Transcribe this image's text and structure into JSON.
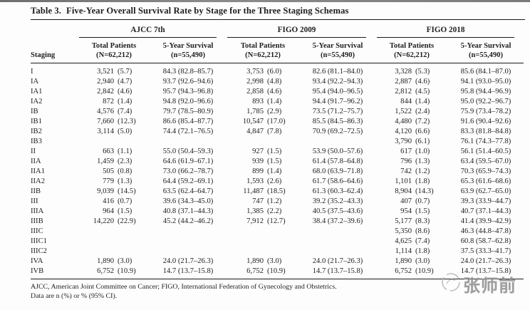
{
  "page": {
    "title_label": "Table 3.",
    "title_text": "Five-Year Overall Survival Rate by Stage for the Three Staging Schemas"
  },
  "table": {
    "staging_header": "Staging",
    "groups": [
      {
        "label": "AJCC 7th"
      },
      {
        "label": "FIGO 2009"
      },
      {
        "label": "FIGO 2018"
      }
    ],
    "subheaders": {
      "total_patients": "Total Patients",
      "total_patients_n": "(N=62,212)",
      "survival": "5-Year Survival",
      "survival_n": "(n=55,490)"
    },
    "rows": [
      {
        "stage": "I",
        "cells": [
          "3,521 (5.7)",
          "84.3 (82.8–85.7)",
          "3,753 (6.0)",
          "82.6 (81.1–84.0)",
          "3,328 (5.3)",
          "85.6 (84.1–87.0)"
        ]
      },
      {
        "stage": "IA",
        "cells": [
          "2,940 (4.7)",
          "93.7 (92.6–94.6)",
          "2,998 (4.8)",
          "93.4 (92.2–94.3)",
          "2,887 (4.6)",
          "94.1 (93.0–95.0)"
        ]
      },
      {
        "stage": "IA1",
        "cells": [
          "2,842 (4.6)",
          "95.7 (94.3–96.8)",
          "2,858 (4.6)",
          "95.4 (94.0–96.5)",
          "2,812 (4.5)",
          "95.8 (94.4–96.9)"
        ]
      },
      {
        "stage": "IA2",
        "cells": [
          "872 (1.4)",
          "94.8 (92.0–96.6)",
          "893 (1.4)",
          "94.4 (91.7–96.2)",
          "844 (1.4)",
          "95.0 (92.2–96.7)"
        ]
      },
      {
        "stage": "IB",
        "cells": [
          "4,576 (7.4)",
          "79.7 (78.5–80.9)",
          "1,785 (2.9)",
          "73.5 (71.2–75.7)",
          "1,522 (2.4)",
          "75.9 (73.4–78.2)"
        ]
      },
      {
        "stage": "IB1",
        "cells": [
          "7,660 (12.3)",
          "86.6 (85.4–87.7)",
          "10,547 (17.0)",
          "85.5 (84.5–86.3)",
          "4,480 (7.2)",
          "91.6 (90.4–92.6)"
        ]
      },
      {
        "stage": "IB2",
        "cells": [
          "3,114 (5.0)",
          "74.4 (72.1–76.5)",
          "4,847 (7.8)",
          "70.9 (69.2–72.5)",
          "4,120 (6.6)",
          "83.3 (81.8–84.8)"
        ]
      },
      {
        "stage": "IB3",
        "cells": [
          "",
          "",
          "",
          "",
          "3,790 (6.1)",
          "76.1 (74.3–77.8)"
        ]
      },
      {
        "stage": "II",
        "cells": [
          "663 (1.1)",
          "55.0 (50.4–59.3)",
          "927 (1.5)",
          "53.9 (50.0–57.6)",
          "617 (1.0)",
          "56.1 (51.4–60.5)"
        ]
      },
      {
        "stage": "IIA",
        "cells": [
          "1,459 (2.3)",
          "64.6 (61.9–67.1)",
          "939 (1.5)",
          "61.4 (57.8–64.8)",
          "796 (1.3)",
          "63.4 (59.5–67.0)"
        ]
      },
      {
        "stage": "IIA1",
        "cells": [
          "505 (0.8)",
          "73.0 (66.2–78.7)",
          "899 (1.4)",
          "68.0 (63.9–71.8)",
          "742 (1.2)",
          "70.3 (65.9–74.3)"
        ]
      },
      {
        "stage": "IIA2",
        "cells": [
          "779 (1.3)",
          "64.4 (59.2–69.1)",
          "1,593 (2.6)",
          "61.7 (58.6–64.6)",
          "1,101 (1.8)",
          "65.3 (61.6–68.6)"
        ]
      },
      {
        "stage": "IIB",
        "cells": [
          "9,039 (14.5)",
          "63.5 (62.4–64.7)",
          "11,487 (18.5)",
          "61.3 (60.3–62.4)",
          "8,904 (14.3)",
          "63.9 (62.7–65.0)"
        ]
      },
      {
        "stage": "III",
        "cells": [
          "416 (0.7)",
          "39.6 (34.3–45.0)",
          "747 (1.2)",
          "39.2 (35.2–43.3)",
          "407 (0.7)",
          "39.3 (33.9–44.7)"
        ]
      },
      {
        "stage": "IIIA",
        "cells": [
          "964 (1.5)",
          "40.8 (37.1–44.3)",
          "1,385 (2.2)",
          "40.5 (37.5–43.6)",
          "954 (1.5)",
          "40.7 (37.1–44.3)"
        ]
      },
      {
        "stage": "IIIB",
        "cells": [
          "14,220 (22.9)",
          "45.2 (44.2–46.2)",
          "7,912 (12.7)",
          "38.4 (37.2–39.6)",
          "5,177 (8.3)",
          "41.4 (39.9–42.9)"
        ]
      },
      {
        "stage": "IIIC",
        "cells": [
          "",
          "",
          "",
          "",
          "5,350 (8.6)",
          "46.3 (44.8–47.8)"
        ]
      },
      {
        "stage": "IIIC1",
        "cells": [
          "",
          "",
          "",
          "",
          "4,625 (7.4)",
          "60.8 (58.7–62.8)"
        ]
      },
      {
        "stage": "IIIC2",
        "cells": [
          "",
          "",
          "",
          "",
          "1,114 (1.8)",
          "37.5 (33.3–41.7)"
        ]
      },
      {
        "stage": "IVA",
        "cells": [
          "1,890 (3.0)",
          "24.0 (21.7–26.3)",
          "1,890 (3.0)",
          "24.0 (21.7–26.3)",
          "1,890 (3.0)",
          "24.0 (21.7–26.3)"
        ]
      },
      {
        "stage": "IVB",
        "cells": [
          "6,752 (10.9)",
          "14.7 (13.7–15.8)",
          "6,752 (10.9)",
          "14.7 (13.7–15.8)",
          "6,752 (10.9)",
          "14.7 (13.7–15.8)"
        ]
      }
    ]
  },
  "footnotes": [
    "AJCC, American Joint Committee on Cancer; FIGO, International Federation of Gynecology and Obstetrics.",
    "Data are n (%) or % (95% CI)."
  ],
  "watermark": {
    "text": "张师前"
  }
}
